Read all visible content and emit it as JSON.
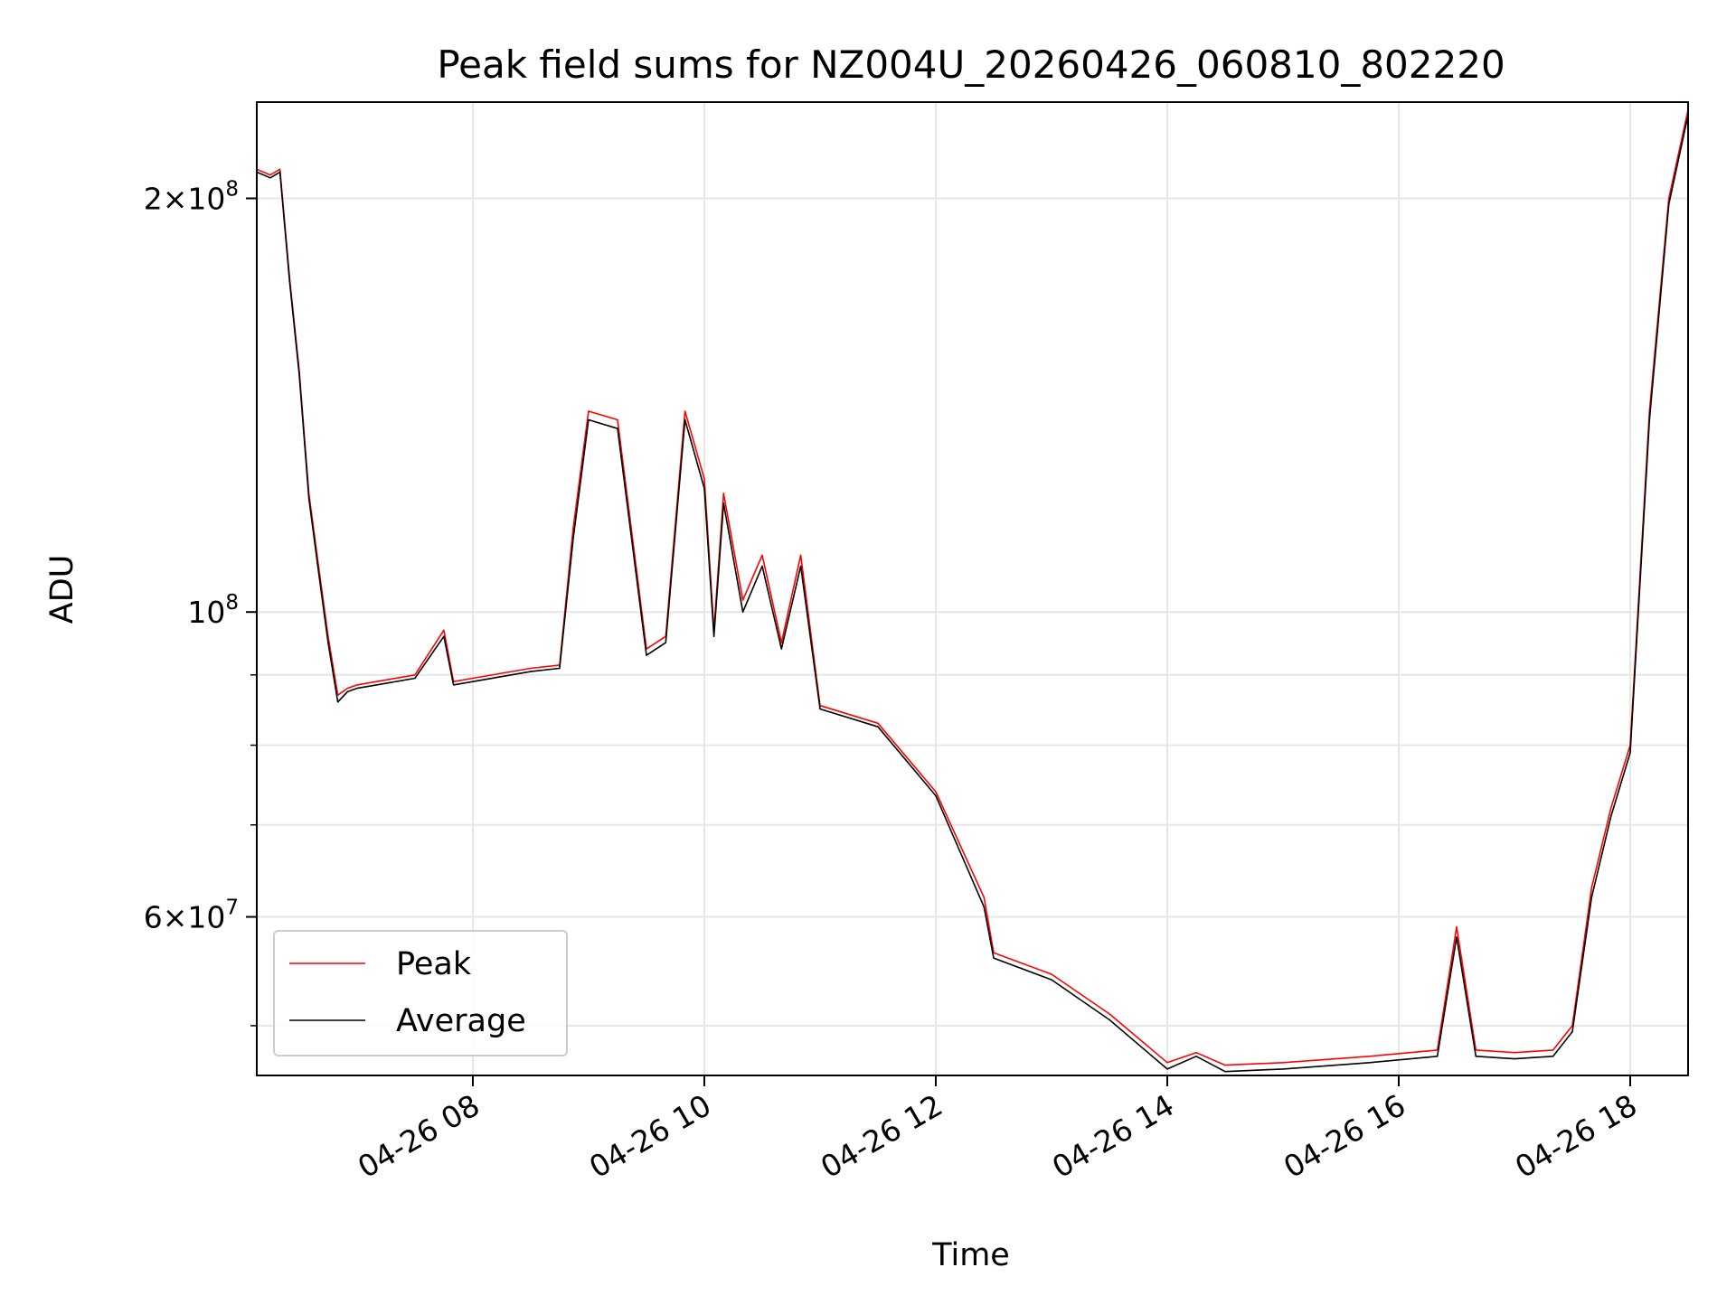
{
  "chart_data": {
    "type": "line",
    "title": "Peak field sums for NZ004U_20260426_060810_802220",
    "xlabel": "Time",
    "ylabel": "ADU",
    "xlim": [
      "2026-04-26 06:08",
      "2026-04-26 18:30"
    ],
    "ylim": [
      46000000,
      235000000
    ],
    "yscale": "log",
    "grid": true,
    "legend_position": "lower-left",
    "x_ticks": [
      "04-26 08",
      "04-26 10",
      "04-26 12",
      "04-26 14",
      "04-26 16",
      "04-26 18"
    ],
    "x_tick_times": [
      "2026-04-26 08:00",
      "2026-04-26 10:00",
      "2026-04-26 12:00",
      "2026-04-26 14:00",
      "2026-04-26 16:00",
      "2026-04-26 18:00"
    ],
    "y_major_ticks": [
      {
        "value": 60000000,
        "label_mant": "6",
        "label_exp": "7",
        "has_mant": true
      },
      {
        "value": 100000000,
        "label_mant": "",
        "label_exp": "8",
        "has_mant": false
      },
      {
        "value": 200000000,
        "label_mant": "2",
        "label_exp": "8",
        "has_mant": true
      }
    ],
    "y_minor_ticks": [
      50000000,
      70000000,
      80000000,
      90000000
    ],
    "series": [
      {
        "name": "Peak",
        "color": "#ff0000",
        "x": [
          "2026-04-26 06:08",
          "2026-04-26 06:15",
          "2026-04-26 06:20",
          "2026-04-26 06:25",
          "2026-04-26 06:30",
          "2026-04-26 06:35",
          "2026-04-26 06:40",
          "2026-04-26 06:45",
          "2026-04-26 06:50",
          "2026-04-26 06:55",
          "2026-04-26 07:00",
          "2026-04-26 07:10",
          "2026-04-26 07:30",
          "2026-04-26 07:45",
          "2026-04-26 07:50",
          "2026-04-26 08:00",
          "2026-04-26 08:30",
          "2026-04-26 08:45",
          "2026-04-26 08:52",
          "2026-04-26 09:00",
          "2026-04-26 09:15",
          "2026-04-26 09:30",
          "2026-04-26 09:40",
          "2026-04-26 09:50",
          "2026-04-26 10:00",
          "2026-04-26 10:05",
          "2026-04-26 10:10",
          "2026-04-26 10:20",
          "2026-04-26 10:30",
          "2026-04-26 10:40",
          "2026-04-26 10:50",
          "2026-04-26 11:00",
          "2026-04-26 11:30",
          "2026-04-26 12:00",
          "2026-04-26 12:25",
          "2026-04-26 12:30",
          "2026-04-26 13:00",
          "2026-04-26 13:30",
          "2026-04-26 14:00",
          "2026-04-26 14:15",
          "2026-04-26 14:30",
          "2026-04-26 15:00",
          "2026-04-26 15:45",
          "2026-04-26 16:20",
          "2026-04-26 16:30",
          "2026-04-26 16:40",
          "2026-04-26 17:00",
          "2026-04-26 17:20",
          "2026-04-26 17:30",
          "2026-04-26 17:40",
          "2026-04-26 17:50",
          "2026-04-26 18:00",
          "2026-04-26 18:10",
          "2026-04-26 18:20",
          "2026-04-26 18:30"
        ],
        "values": [
          210000000,
          208000000,
          210000000,
          175000000,
          150000000,
          122000000,
          108000000,
          96000000,
          87000000,
          88000000,
          88500000,
          89000000,
          90000000,
          97000000,
          89000000,
          89500000,
          91000000,
          91500000,
          115000000,
          140000000,
          138000000,
          94000000,
          96000000,
          140000000,
          125000000,
          97000000,
          122000000,
          102000000,
          110000000,
          95000000,
          110000000,
          85500000,
          83000000,
          74000000,
          62000000,
          56500000,
          54500000,
          51000000,
          47000000,
          47800000,
          46800000,
          47000000,
          47500000,
          48000000,
          59000000,
          48000000,
          47800000,
          48000000,
          50000000,
          63000000,
          72000000,
          80000000,
          140000000,
          200000000,
          232000000
        ]
      },
      {
        "name": "Average",
        "color": "#000000",
        "x": [
          "2026-04-26 06:08",
          "2026-04-26 06:15",
          "2026-04-26 06:20",
          "2026-04-26 06:25",
          "2026-04-26 06:30",
          "2026-04-26 06:35",
          "2026-04-26 06:40",
          "2026-04-26 06:45",
          "2026-04-26 06:50",
          "2026-04-26 06:55",
          "2026-04-26 07:00",
          "2026-04-26 07:10",
          "2026-04-26 07:30",
          "2026-04-26 07:45",
          "2026-04-26 07:50",
          "2026-04-26 08:00",
          "2026-04-26 08:30",
          "2026-04-26 08:45",
          "2026-04-26 08:52",
          "2026-04-26 09:00",
          "2026-04-26 09:15",
          "2026-04-26 09:30",
          "2026-04-26 09:40",
          "2026-04-26 09:50",
          "2026-04-26 10:00",
          "2026-04-26 10:05",
          "2026-04-26 10:10",
          "2026-04-26 10:20",
          "2026-04-26 10:30",
          "2026-04-26 10:40",
          "2026-04-26 10:50",
          "2026-04-26 11:00",
          "2026-04-26 11:30",
          "2026-04-26 12:00",
          "2026-04-26 12:25",
          "2026-04-26 12:30",
          "2026-04-26 13:00",
          "2026-04-26 13:30",
          "2026-04-26 14:00",
          "2026-04-26 14:15",
          "2026-04-26 14:30",
          "2026-04-26 15:00",
          "2026-04-26 15:45",
          "2026-04-26 16:20",
          "2026-04-26 16:30",
          "2026-04-26 16:40",
          "2026-04-26 17:00",
          "2026-04-26 17:20",
          "2026-04-26 17:30",
          "2026-04-26 17:40",
          "2026-04-26 17:50",
          "2026-04-26 18:00",
          "2026-04-26 18:10",
          "2026-04-26 18:20",
          "2026-04-26 18:30"
        ],
        "values": [
          209000000,
          207000000,
          209000000,
          174000000,
          149000000,
          121000000,
          107000000,
          95000000,
          86000000,
          87500000,
          88000000,
          88500000,
          89500000,
          96000000,
          88500000,
          89000000,
          90500000,
          91000000,
          113000000,
          138000000,
          136000000,
          93000000,
          95000000,
          138000000,
          123000000,
          96000000,
          120000000,
          100000000,
          108000000,
          94000000,
          108000000,
          85000000,
          82500000,
          73500000,
          61000000,
          56000000,
          54000000,
          50500000,
          46500000,
          47500000,
          46300000,
          46500000,
          47000000,
          47500000,
          58000000,
          47500000,
          47300000,
          47500000,
          49500000,
          62000000,
          71000000,
          79000000,
          138000000,
          198000000,
          230000000
        ]
      }
    ]
  }
}
